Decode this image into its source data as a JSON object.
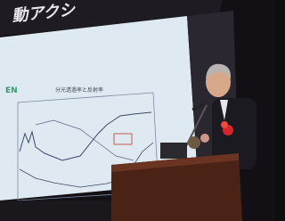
{
  "slide": {
    "heading": "動アクシ",
    "logo": "EN",
    "chart_title": "分光透過率と反射率"
  }
}
